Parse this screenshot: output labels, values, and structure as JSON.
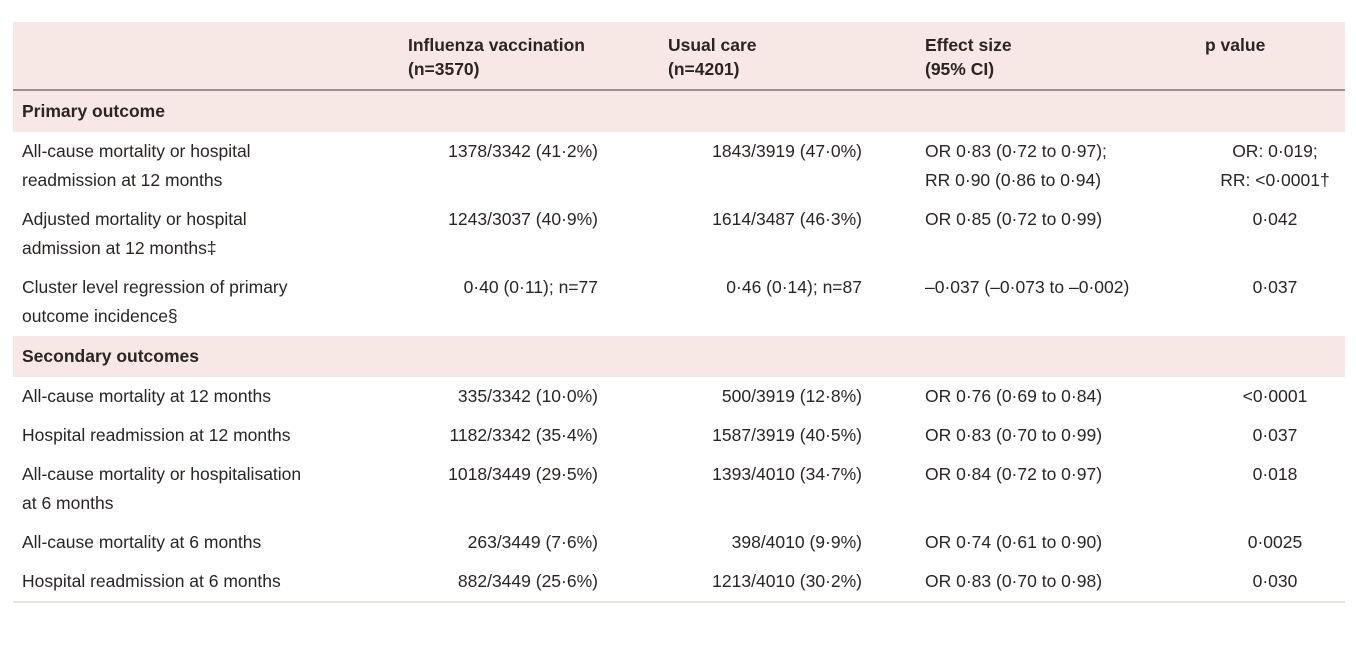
{
  "colors": {
    "band_bg": "#f7e8e5",
    "text": "#2a2523",
    "header_divider": "#9a918e",
    "table_bottom_border": "#eae6e3",
    "row_bg": "#ffffff"
  },
  "table": {
    "header": {
      "col_label": "",
      "col_vaccination": "Influenza vaccination\n(n=3570)",
      "col_usual_care": "Usual care\n(n=4201)",
      "col_effect": "Effect size\n(95% CI)",
      "col_p": "p value"
    },
    "sections": [
      {
        "title": "Primary outcome",
        "rows": [
          {
            "label": "All-cause mortality or hospital\nreadmission at 12 months",
            "vaccination": "1378/3342 (41·2%)",
            "usual_care": "1843/3919 (47·0%)",
            "effect_size": "OR 0·83 (0·72 to 0·97);\nRR 0·90 (0·86 to 0·94)",
            "p_value": "OR: 0·019;\nRR: <0·0001†"
          },
          {
            "label": "Adjusted mortality or hospital\nadmission at 12 months‡",
            "vaccination": "1243/3037 (40·9%)",
            "usual_care": "1614/3487 (46·3%)",
            "effect_size": "OR 0·85 (0·72 to 0·99)",
            "p_value": "0·042"
          },
          {
            "label": "Cluster level regression of primary\noutcome incidence§",
            "vaccination": "0·40 (0·11); n=77",
            "usual_care": "0·46 (0·14); n=87",
            "effect_size": "–0·037 (–0·073 to –0·002)",
            "p_value": "0·037"
          }
        ]
      },
      {
        "title": "Secondary outcomes",
        "rows": [
          {
            "label": "All-cause mortality at 12 months",
            "vaccination": "335/3342 (10·0%)",
            "usual_care": "500/3919 (12·8%)",
            "effect_size": "OR 0·76 (0·69 to 0·84)",
            "p_value": "<0·0001"
          },
          {
            "label": "Hospital readmission at 12 months",
            "vaccination": "1182/3342 (35·4%)",
            "usual_care": "1587/3919 (40·5%)",
            "effect_size": "OR 0·83 (0·70 to 0·99)",
            "p_value": "0·037"
          },
          {
            "label": "All-cause mortality or hospitalisation\nat 6 months",
            "vaccination": "1018/3449 (29·5%)",
            "usual_care": "1393/4010 (34·7%)",
            "effect_size": "OR 0·84 (0·72 to 0·97)",
            "p_value": "0·018"
          },
          {
            "label": "All-cause mortality at 6 months",
            "vaccination": "263/3449 (7·6%)",
            "usual_care": "398/4010 (9·9%)",
            "effect_size": "OR 0·74 (0·61 to 0·90)",
            "p_value": "0·0025"
          },
          {
            "label": "Hospital readmission at 6 months",
            "vaccination": "882/3449 (25·6%)",
            "usual_care": "1213/4010 (30·2%)",
            "effect_size": "OR 0·83 (0·70 to 0·98)",
            "p_value": "0·030"
          }
        ]
      }
    ]
  }
}
